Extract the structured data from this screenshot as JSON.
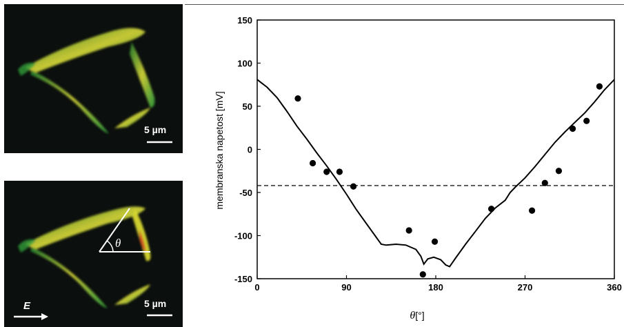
{
  "panels": {
    "top": {
      "scale_bar_label": "5 µm"
    },
    "bottom": {
      "scale_bar_label": "5 µm",
      "field_label": "E",
      "angle_label": "θ"
    }
  },
  "colors": {
    "micro_background": "#0b0f0d",
    "cell_green": "#2e9a3a",
    "cell_yellow": "#d8d830",
    "cell_red": "#d24a1e"
  },
  "chart_data": {
    "type": "scatter",
    "ylabel": "membranska napetost [mV]",
    "xlabel_symbol": "θ",
    "xlabel_unit": "[°]",
    "xlim": [
      0,
      360
    ],
    "ylim": [
      -150,
      150
    ],
    "xticks": [
      0,
      90,
      180,
      270,
      360
    ],
    "yticks": [
      150,
      100,
      50,
      0,
      -50,
      -100,
      -150
    ],
    "grid": false,
    "points": [
      {
        "x": 41,
        "y": 59
      },
      {
        "x": 56,
        "y": -16
      },
      {
        "x": 70,
        "y": -26
      },
      {
        "x": 83,
        "y": -26
      },
      {
        "x": 97,
        "y": -43
      },
      {
        "x": 153,
        "y": -94
      },
      {
        "x": 167,
        "y": -145
      },
      {
        "x": 179,
        "y": -107
      },
      {
        "x": 236,
        "y": -69
      },
      {
        "x": 277,
        "y": -71
      },
      {
        "x": 290,
        "y": -39
      },
      {
        "x": 304,
        "y": -25
      },
      {
        "x": 318,
        "y": 24
      },
      {
        "x": 332,
        "y": 33
      },
      {
        "x": 345,
        "y": 73
      }
    ],
    "model_curve": [
      {
        "x": 0,
        "y": 81
      },
      {
        "x": 10,
        "y": 72
      },
      {
        "x": 20,
        "y": 60
      },
      {
        "x": 30,
        "y": 44
      },
      {
        "x": 40,
        "y": 27
      },
      {
        "x": 50,
        "y": 12
      },
      {
        "x": 60,
        "y": -4
      },
      {
        "x": 70,
        "y": -19
      },
      {
        "x": 80,
        "y": -35
      },
      {
        "x": 90,
        "y": -52
      },
      {
        "x": 100,
        "y": -70
      },
      {
        "x": 110,
        "y": -86
      },
      {
        "x": 120,
        "y": -102
      },
      {
        "x": 125,
        "y": -110
      },
      {
        "x": 130,
        "y": -111
      },
      {
        "x": 140,
        "y": -110
      },
      {
        "x": 150,
        "y": -111
      },
      {
        "x": 160,
        "y": -116
      },
      {
        "x": 165,
        "y": -124
      },
      {
        "x": 168,
        "y": -133
      },
      {
        "x": 172,
        "y": -127
      },
      {
        "x": 178,
        "y": -125
      },
      {
        "x": 185,
        "y": -128
      },
      {
        "x": 190,
        "y": -134
      },
      {
        "x": 194,
        "y": -136
      },
      {
        "x": 200,
        "y": -126
      },
      {
        "x": 210,
        "y": -110
      },
      {
        "x": 220,
        "y": -95
      },
      {
        "x": 230,
        "y": -80
      },
      {
        "x": 240,
        "y": -68
      },
      {
        "x": 250,
        "y": -59
      },
      {
        "x": 255,
        "y": -50
      },
      {
        "x": 260,
        "y": -44
      },
      {
        "x": 270,
        "y": -33
      },
      {
        "x": 280,
        "y": -20
      },
      {
        "x": 290,
        "y": -6
      },
      {
        "x": 300,
        "y": 8
      },
      {
        "x": 310,
        "y": 20
      },
      {
        "x": 320,
        "y": 31
      },
      {
        "x": 330,
        "y": 42
      },
      {
        "x": 340,
        "y": 55
      },
      {
        "x": 350,
        "y": 69
      },
      {
        "x": 360,
        "y": 81
      }
    ],
    "reference_line_y": -42
  }
}
